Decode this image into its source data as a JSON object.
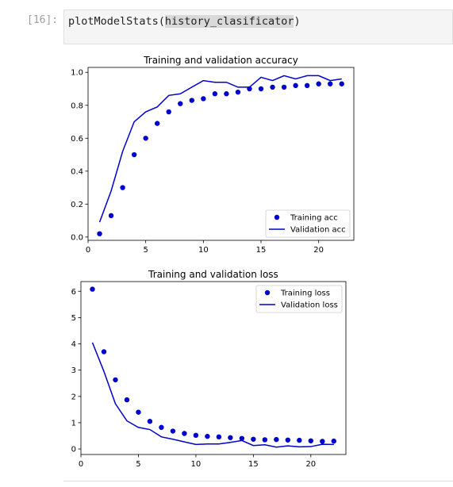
{
  "cell": {
    "prompt": "[16]:",
    "code_func": "plotModelStats(",
    "code_arg": "history_clasificator",
    "code_close": ")"
  },
  "colors": {
    "series": "#0000cc"
  },
  "chart_data": [
    {
      "type": "line",
      "title": "Training and validation accuracy",
      "xlabel": "",
      "ylabel": "",
      "xlim": [
        0,
        23.05
      ],
      "ylim": [
        -0.02,
        1.03
      ],
      "xticks": [
        0,
        5,
        10,
        15,
        20
      ],
      "yticks": [
        0.0,
        0.2,
        0.4,
        0.6,
        0.8,
        1.0
      ],
      "ytick_labels": [
        "0.0",
        "0.2",
        "0.4",
        "0.6",
        "0.8",
        "1.0"
      ],
      "legend": "bottom-right",
      "series": [
        {
          "name": "Training acc",
          "style": "dots",
          "x": [
            1,
            2,
            3,
            4,
            5,
            6,
            7,
            8,
            9,
            10,
            11,
            12,
            13,
            14,
            15,
            16,
            17,
            18,
            19,
            20,
            21,
            22
          ],
          "y": [
            0.02,
            0.13,
            0.3,
            0.5,
            0.6,
            0.69,
            0.76,
            0.81,
            0.83,
            0.84,
            0.87,
            0.87,
            0.88,
            0.9,
            0.9,
            0.91,
            0.91,
            0.92,
            0.92,
            0.93,
            0.93,
            0.93
          ]
        },
        {
          "name": "Validation acc",
          "style": "line",
          "x": [
            1,
            2,
            3,
            4,
            5,
            6,
            7,
            8,
            9,
            10,
            11,
            12,
            13,
            14,
            15,
            16,
            17,
            18,
            19,
            20,
            21,
            22
          ],
          "y": [
            0.09,
            0.28,
            0.52,
            0.7,
            0.76,
            0.79,
            0.86,
            0.87,
            0.91,
            0.95,
            0.94,
            0.94,
            0.91,
            0.91,
            0.97,
            0.95,
            0.98,
            0.96,
            0.98,
            0.98,
            0.95,
            0.96
          ]
        }
      ]
    },
    {
      "type": "line",
      "title": "Training and validation loss",
      "xlabel": "",
      "ylabel": "",
      "xlim": [
        0,
        23.05
      ],
      "ylim": [
        -0.21,
        6.37
      ],
      "xticks": [
        0,
        5,
        10,
        15,
        20
      ],
      "yticks": [
        0,
        1,
        2,
        3,
        4,
        5,
        6
      ],
      "ytick_labels": [
        "0",
        "1",
        "2",
        "3",
        "4",
        "5",
        "6"
      ],
      "legend": "top-right",
      "series": [
        {
          "name": "Training loss",
          "style": "dots",
          "x": [
            1,
            2,
            3,
            4,
            5,
            6,
            7,
            8,
            9,
            10,
            11,
            12,
            13,
            14,
            15,
            16,
            17,
            18,
            19,
            20,
            21,
            22
          ],
          "y": [
            6.08,
            3.7,
            2.63,
            1.87,
            1.4,
            1.05,
            0.82,
            0.68,
            0.59,
            0.52,
            0.48,
            0.46,
            0.43,
            0.4,
            0.37,
            0.35,
            0.36,
            0.34,
            0.33,
            0.31,
            0.29,
            0.3
          ]
        },
        {
          "name": "Validation loss",
          "style": "line",
          "x": [
            1,
            2,
            3,
            4,
            5,
            6,
            7,
            8,
            9,
            10,
            11,
            12,
            13,
            14,
            15,
            16,
            17,
            18,
            19,
            20,
            21,
            22
          ],
          "y": [
            4.05,
            2.95,
            1.72,
            1.07,
            0.82,
            0.74,
            0.46,
            0.37,
            0.27,
            0.17,
            0.19,
            0.19,
            0.25,
            0.32,
            0.13,
            0.16,
            0.07,
            0.12,
            0.08,
            0.09,
            0.18,
            0.17
          ]
        }
      ]
    }
  ]
}
